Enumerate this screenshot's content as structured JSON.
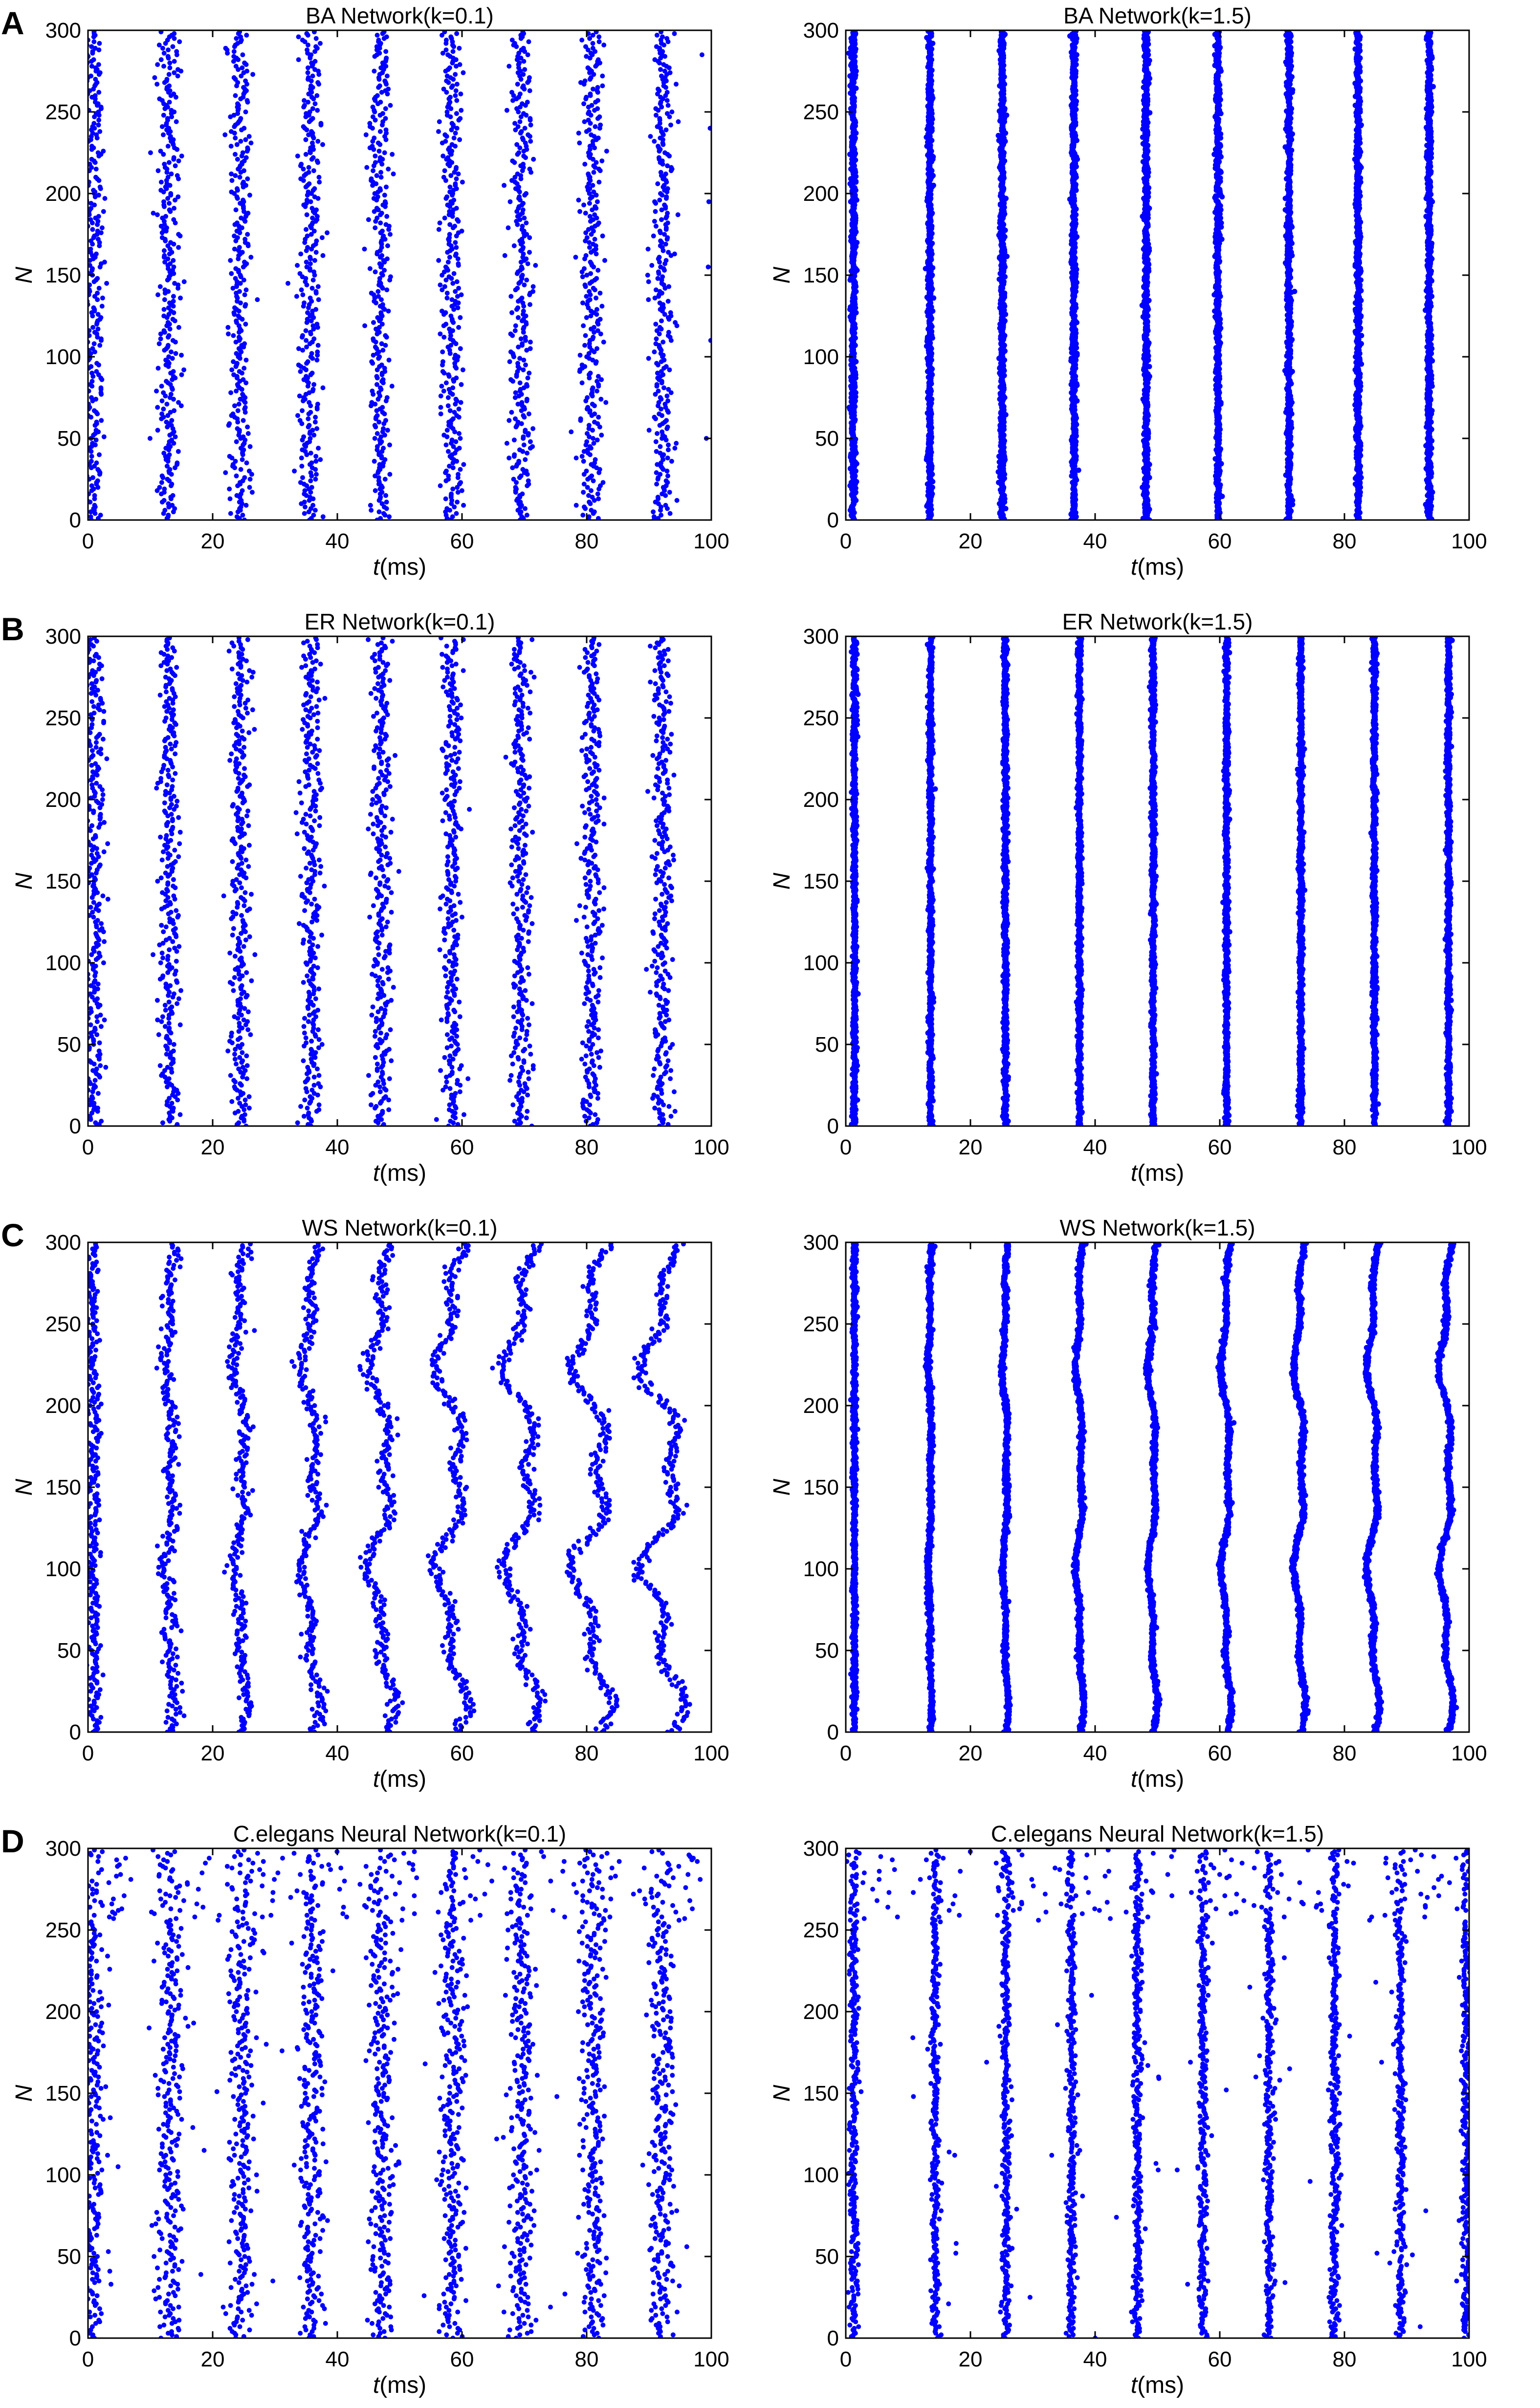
{
  "panel_letters": [
    "A",
    "B",
    "C",
    "D"
  ],
  "colors": {
    "spike": "#0000ff",
    "axis": "#000000",
    "background": "#ffffff"
  },
  "chart_data": [
    {
      "type": "scatter",
      "panel": "A",
      "title": "BA Network(k=0.1)",
      "xlabel": "t(ms)",
      "ylabel": "N",
      "xlim": [
        0,
        100
      ],
      "ylim": [
        0,
        300
      ],
      "xticks": [
        0,
        20,
        40,
        60,
        80,
        100
      ],
      "yticks": [
        0,
        50,
        100,
        150,
        200,
        250,
        300
      ],
      "grid": false,
      "spike_times_ms": [
        0.8,
        13,
        24.3,
        35.6,
        46.9,
        58.2,
        69.5,
        80.8,
        92.1
      ],
      "n_neurons": 300,
      "burst_width_ms": 2.5,
      "notes_visible": "scattered outlier spikes near t=100"
    },
    {
      "type": "scatter",
      "panel": "A",
      "title": "BA Network(k=1.5)",
      "xlabel": "t(ms)",
      "ylabel": "N",
      "xlim": [
        0,
        100
      ],
      "ylim": [
        0,
        300
      ],
      "xticks": [
        0,
        20,
        40,
        60,
        80,
        100
      ],
      "yticks": [
        0,
        50,
        100,
        150,
        200,
        250,
        300
      ],
      "grid": false,
      "spike_times_ms": [
        1.2,
        13.5,
        25.1,
        36.6,
        48.2,
        59.7,
        71.1,
        82.2,
        93.6
      ],
      "n_neurons": 300,
      "burst_width_ms": 0.6
    },
    {
      "type": "scatter",
      "panel": "B",
      "title": "ER Network(k=0.1)",
      "xlabel": "t(ms)",
      "ylabel": "N",
      "xlim": [
        0,
        100
      ],
      "ylim": [
        0,
        300
      ],
      "xticks": [
        0,
        20,
        40,
        60,
        80,
        100
      ],
      "yticks": [
        0,
        50,
        100,
        150,
        200,
        250,
        300
      ],
      "grid": false,
      "spike_times_ms": [
        0.9,
        13.1,
        24.5,
        35.8,
        47,
        58.3,
        69.5,
        80.8,
        92.1
      ],
      "n_neurons": 300,
      "burst_width_ms": 2.3
    },
    {
      "type": "scatter",
      "panel": "B",
      "title": "ER Network(k=1.5)",
      "xlabel": "t(ms)",
      "ylabel": "N",
      "xlim": [
        0,
        100
      ],
      "ylim": [
        0,
        300
      ],
      "xticks": [
        0,
        20,
        40,
        60,
        80,
        100
      ],
      "yticks": [
        0,
        50,
        100,
        150,
        200,
        250,
        300
      ],
      "grid": false,
      "spike_times_ms": [
        1.4,
        13.6,
        25.6,
        37.5,
        49.3,
        61.1,
        73,
        84.8,
        96.7
      ],
      "n_neurons": 300,
      "burst_width_ms": 0.5
    },
    {
      "type": "scatter",
      "panel": "C",
      "title": "WS Network(k=0.1)",
      "xlabel": "t(ms)",
      "ylabel": "N",
      "xlim": [
        0,
        100
      ],
      "ylim": [
        0,
        300
      ],
      "xticks": [
        0,
        20,
        40,
        60,
        80,
        100
      ],
      "yticks": [
        0,
        50,
        100,
        150,
        200,
        250,
        300
      ],
      "grid": false,
      "spike_times_ms": [
        0.9,
        13.1,
        24.4,
        35.7,
        47,
        58.3,
        69.6,
        80.8,
        92.1
      ],
      "n_neurons": 300,
      "burst_width_ms": 1.6,
      "wave_amplitude_ms": [
        0.2,
        0.8,
        1.3,
        1.8,
        2.3,
        2.8,
        3.2,
        3.6,
        4.0
      ]
    },
    {
      "type": "scatter",
      "panel": "C",
      "title": "WS Network(k=1.5)",
      "xlabel": "t(ms)",
      "ylabel": "N",
      "xlim": [
        0,
        100
      ],
      "ylim": [
        0,
        300
      ],
      "xticks": [
        0,
        20,
        40,
        60,
        80,
        100
      ],
      "yticks": [
        0,
        50,
        100,
        150,
        200,
        250,
        300
      ],
      "grid": false,
      "spike_times_ms": [
        1.4,
        13.5,
        25.6,
        37.5,
        49.2,
        61,
        72.8,
        84.6,
        96.3
      ],
      "n_neurons": 300,
      "burst_width_ms": 0.5,
      "wave_amplitude_ms": [
        0,
        0.3,
        0.5,
        0.7,
        0.8,
        0.9,
        1.0,
        1.1,
        1.2
      ]
    },
    {
      "type": "scatter",
      "panel": "D",
      "title": "C.elegans Neural Network(k=0.1)",
      "xlabel": "t(ms)",
      "ylabel": "N",
      "xlim": [
        0,
        100
      ],
      "ylim": [
        0,
        300
      ],
      "xticks": [
        0,
        20,
        40,
        60,
        80,
        100
      ],
      "yticks": [
        0,
        50,
        100,
        150,
        200,
        250,
        300
      ],
      "grid": false,
      "spike_times_ms": [
        0.8,
        13.2,
        24.6,
        35.9,
        47.1,
        58.4,
        69.6,
        80.9,
        92.1
      ],
      "n_neurons": 300,
      "burst_width_ms": 2.8,
      "scattered_top_region_N": [
        250,
        300
      ]
    },
    {
      "type": "scatter",
      "panel": "D",
      "title": "C.elegans Neural Network(k=1.5)",
      "xlabel": "t(ms)",
      "ylabel": "N",
      "xlim": [
        0,
        100
      ],
      "ylim": [
        0,
        300
      ],
      "xticks": [
        0,
        20,
        40,
        60,
        80,
        100
      ],
      "yticks": [
        0,
        50,
        100,
        150,
        200,
        250,
        300
      ],
      "grid": false,
      "spike_times_ms": [
        1.3,
        14.3,
        25.7,
        36.2,
        46.8,
        57.3,
        67.9,
        78.4,
        89,
        99.5
      ],
      "n_neurons": 300,
      "burst_width_ms": 1.0,
      "scattered_top_region_N": [
        250,
        300
      ]
    }
  ]
}
